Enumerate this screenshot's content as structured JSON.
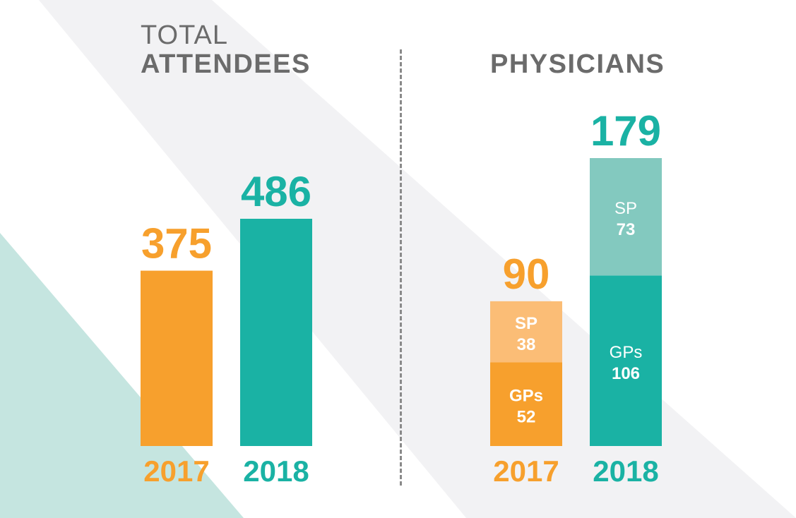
{
  "chart_data": [
    {
      "type": "bar",
      "title_line1": "TOTAL",
      "title_line2": "ATTENDEES",
      "categories": [
        "2017",
        "2018"
      ],
      "values": [
        375,
        486
      ],
      "colors": [
        "#f7a02d",
        "#1ab2a4"
      ]
    },
    {
      "type": "bar",
      "stacked": true,
      "title": "PHYSICIANS",
      "categories": [
        "2017",
        "2018"
      ],
      "totals": [
        90,
        179
      ],
      "series": [
        {
          "name": "GPs",
          "values": [
            52,
            106
          ],
          "colors": [
            "#f7a02d",
            "#1ab2a4"
          ]
        },
        {
          "name": "SP",
          "values": [
            38,
            73
          ],
          "colors": [
            "#fbbd76",
            "#83c9bf"
          ]
        }
      ]
    }
  ],
  "colors": {
    "orange": "#f7a02d",
    "teal": "#1ab2a4",
    "gray_text": "#6b6b6b"
  }
}
